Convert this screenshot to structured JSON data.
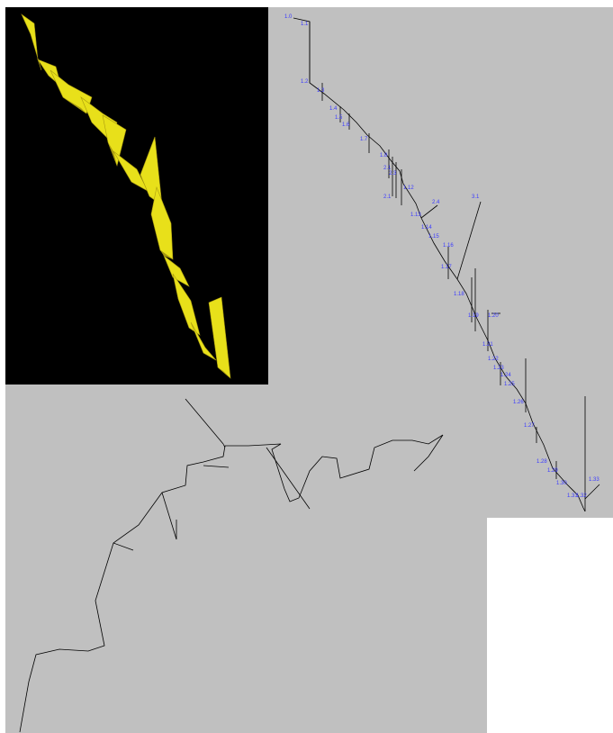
{
  "window": {
    "views": [
      "3d-render",
      "plan-view",
      "elevation-view"
    ]
  },
  "colors": {
    "background": "#ffffff",
    "view_bg": "#c0c0c0",
    "render_bg": "#000000",
    "passage_fill": "#e8e01a",
    "passage_shade": "#a89a10",
    "survey_line": "#000000",
    "station_label": "#3b3bff"
  },
  "plan": {
    "station_labels": [
      "1.0",
      "1.1",
      "1.2",
      "1.3",
      "1.4",
      "1.5",
      "1.6",
      "1.7",
      "1.8",
      "2.1",
      "2.3",
      "1.12",
      "2.1",
      "2.4",
      "3.1",
      "1.13",
      "1.14",
      "1.15",
      "1.16",
      "1.17",
      "1.18",
      "1.19",
      "1.20",
      "1.21",
      "1.22",
      "1.23",
      "1.24",
      "1.25",
      "1.26",
      "1.27",
      "1.28",
      "1.29",
      "1.30",
      "1.31",
      "1.32",
      "1.33"
    ]
  }
}
